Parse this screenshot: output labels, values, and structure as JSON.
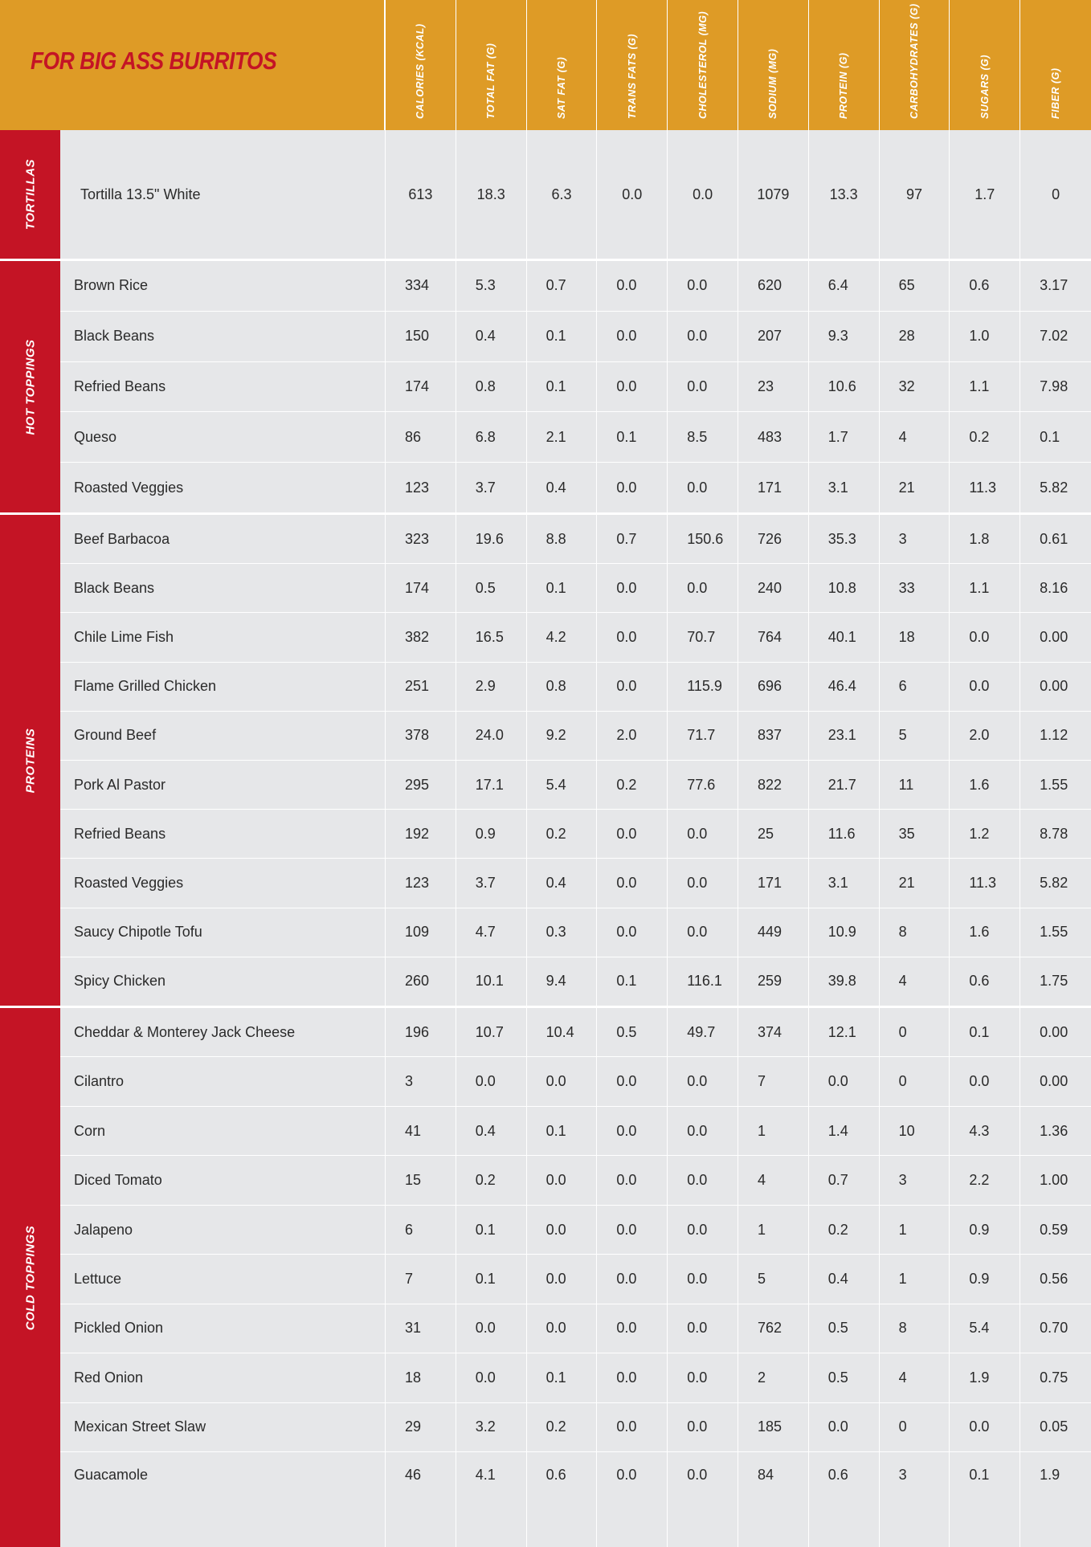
{
  "title": "FOR BIG ASS BURRITOS",
  "colors": {
    "header_bg": "#de9b26",
    "section_bg": "#c41425",
    "title_text": "#c41425",
    "row_bg": "#e6e7e9"
  },
  "columns": [
    "CALORIES (KCAL)",
    "TOTAL FAT (G)",
    "SAT FAT (G)",
    "TRANS FATS (G)",
    "CHOLESTEROL (MG)",
    "SODIUM (MG)",
    "PROTEIN (G)",
    "CARBOHYDRATES (G)",
    "SUGARS (G)",
    "FIBER (G)"
  ],
  "sections": [
    {
      "label": "TORTILLAS",
      "rows": [
        {
          "name": "Tortilla 13.5\" White",
          "values": [
            "613",
            "18.3",
            "6.3",
            "0.0",
            "0.0",
            "1079",
            "13.3",
            "97",
            "1.7",
            "0"
          ]
        }
      ]
    },
    {
      "label": "HOT TOPPINGS",
      "rows": [
        {
          "name": "Brown Rice",
          "values": [
            "334",
            "5.3",
            "0.7",
            "0.0",
            "0.0",
            "620",
            "6.4",
            "65",
            "0.6",
            "3.17"
          ]
        },
        {
          "name": "Black Beans",
          "values": [
            "150",
            "0.4",
            "0.1",
            "0.0",
            "0.0",
            "207",
            "9.3",
            "28",
            "1.0",
            "7.02"
          ]
        },
        {
          "name": "Refried Beans",
          "values": [
            "174",
            "0.8",
            "0.1",
            "0.0",
            "0.0",
            "23",
            "10.6",
            "32",
            "1.1",
            "7.98"
          ]
        },
        {
          "name": "Queso",
          "values": [
            "86",
            "6.8",
            "2.1",
            "0.1",
            "8.5",
            "483",
            "1.7",
            "4",
            "0.2",
            "0.1"
          ]
        },
        {
          "name": "Roasted Veggies",
          "values": [
            "123",
            "3.7",
            "0.4",
            "0.0",
            "0.0",
            "171",
            "3.1",
            "21",
            "11.3",
            "5.82"
          ]
        }
      ]
    },
    {
      "label": "PROTEINS",
      "rows": [
        {
          "name": "Beef Barbacoa",
          "values": [
            "323",
            "19.6",
            "8.8",
            "0.7",
            "150.6",
            "726",
            "35.3",
            "3",
            "1.8",
            "0.61"
          ]
        },
        {
          "name": "Black Beans",
          "values": [
            "174",
            "0.5",
            "0.1",
            "0.0",
            "0.0",
            "240",
            "10.8",
            "33",
            "1.1",
            "8.16"
          ]
        },
        {
          "name": "Chile Lime Fish",
          "values": [
            "382",
            "16.5",
            "4.2",
            "0.0",
            "70.7",
            "764",
            "40.1",
            "18",
            "0.0",
            "0.00"
          ]
        },
        {
          "name": "Flame Grilled Chicken",
          "values": [
            "251",
            "2.9",
            "0.8",
            "0.0",
            "115.9",
            "696",
            "46.4",
            "6",
            "0.0",
            "0.00"
          ]
        },
        {
          "name": "Ground Beef",
          "values": [
            "378",
            "24.0",
            "9.2",
            "2.0",
            "71.7",
            "837",
            "23.1",
            "5",
            "2.0",
            "1.12"
          ]
        },
        {
          "name": "Pork Al Pastor",
          "values": [
            "295",
            "17.1",
            "5.4",
            "0.2",
            "77.6",
            "822",
            "21.7",
            "11",
            "1.6",
            "1.55"
          ]
        },
        {
          "name": "Refried Beans",
          "values": [
            "192",
            "0.9",
            "0.2",
            "0.0",
            "0.0",
            "25",
            "11.6",
            "35",
            "1.2",
            "8.78"
          ]
        },
        {
          "name": "Roasted Veggies",
          "values": [
            "123",
            "3.7",
            "0.4",
            "0.0",
            "0.0",
            "171",
            "3.1",
            "21",
            "11.3",
            "5.82"
          ]
        },
        {
          "name": "Saucy Chipotle Tofu",
          "values": [
            "109",
            "4.7",
            "0.3",
            "0.0",
            "0.0",
            "449",
            "10.9",
            "8",
            "1.6",
            "1.55"
          ]
        },
        {
          "name": "Spicy Chicken",
          "values": [
            "260",
            "10.1",
            "9.4",
            "0.1",
            "116.1",
            "259",
            "39.8",
            "4",
            "0.6",
            "1.75"
          ]
        }
      ]
    },
    {
      "label": "COLD TOPPINGS",
      "rows": [
        {
          "name": "Cheddar & Monterey Jack Cheese",
          "values": [
            "196",
            "10.7",
            "10.4",
            "0.5",
            "49.7",
            "374",
            "12.1",
            "0",
            "0.1",
            "0.00"
          ]
        },
        {
          "name": "Cilantro",
          "values": [
            "3",
            "0.0",
            "0.0",
            "0.0",
            "0.0",
            "7",
            "0.0",
            "0",
            "0.0",
            "0.00"
          ]
        },
        {
          "name": "Corn",
          "values": [
            "41",
            "0.4",
            "0.1",
            "0.0",
            "0.0",
            "1",
            "1.4",
            "10",
            "4.3",
            "1.36"
          ]
        },
        {
          "name": "Diced Tomato",
          "values": [
            "15",
            "0.2",
            "0.0",
            "0.0",
            "0.0",
            "4",
            "0.7",
            "3",
            "2.2",
            "1.00"
          ]
        },
        {
          "name": "Jalapeno",
          "values": [
            "6",
            "0.1",
            "0.0",
            "0.0",
            "0.0",
            "1",
            "0.2",
            "1",
            "0.9",
            "0.59"
          ]
        },
        {
          "name": "Lettuce",
          "values": [
            "7",
            "0.1",
            "0.0",
            "0.0",
            "0.0",
            "5",
            "0.4",
            "1",
            "0.9",
            "0.56"
          ]
        },
        {
          "name": "Pickled Onion",
          "values": [
            "31",
            "0.0",
            "0.0",
            "0.0",
            "0.0",
            "762",
            "0.5",
            "8",
            "5.4",
            "0.70"
          ]
        },
        {
          "name": "Red Onion",
          "values": [
            "18",
            "0.0",
            "0.1",
            "0.0",
            "0.0",
            "2",
            "0.5",
            "4",
            "1.9",
            "0.75"
          ]
        },
        {
          "name": "Mexican Street Slaw",
          "values": [
            "29",
            "3.2",
            "0.2",
            "0.0",
            "0.0",
            "185",
            "0.0",
            "0",
            "0.0",
            "0.05"
          ]
        },
        {
          "name": "Guacamole",
          "values": [
            "46",
            "4.1",
            "0.6",
            "0.0",
            "0.0",
            "84",
            "0.6",
            "3",
            "0.1",
            "1.9"
          ]
        }
      ]
    }
  ]
}
